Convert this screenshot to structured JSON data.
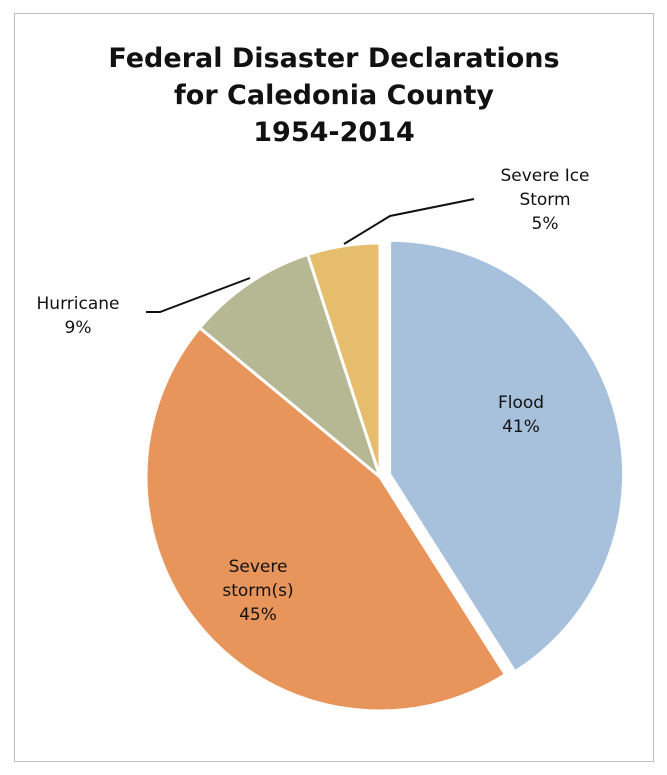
{
  "chart_data": {
    "type": "pie",
    "title": [
      "Federal Disaster Declarations",
      "for Caledonia County",
      "1954-2014"
    ],
    "slices": [
      {
        "label": [
          "Flood"
        ],
        "pct": "41%",
        "value": 41,
        "color": "#a7c1dc"
      },
      {
        "label": [
          "Severe",
          "storm(s)"
        ],
        "pct": "45%",
        "value": 45,
        "color": "#e8955c"
      },
      {
        "label": [
          "Hurricane"
        ],
        "pct": "9%",
        "value": 9,
        "color": "#b5b893"
      },
      {
        "label": [
          "Severe Ice",
          "Storm"
        ],
        "pct": "5%",
        "value": 5,
        "color": "#e5bd6c"
      }
    ]
  }
}
